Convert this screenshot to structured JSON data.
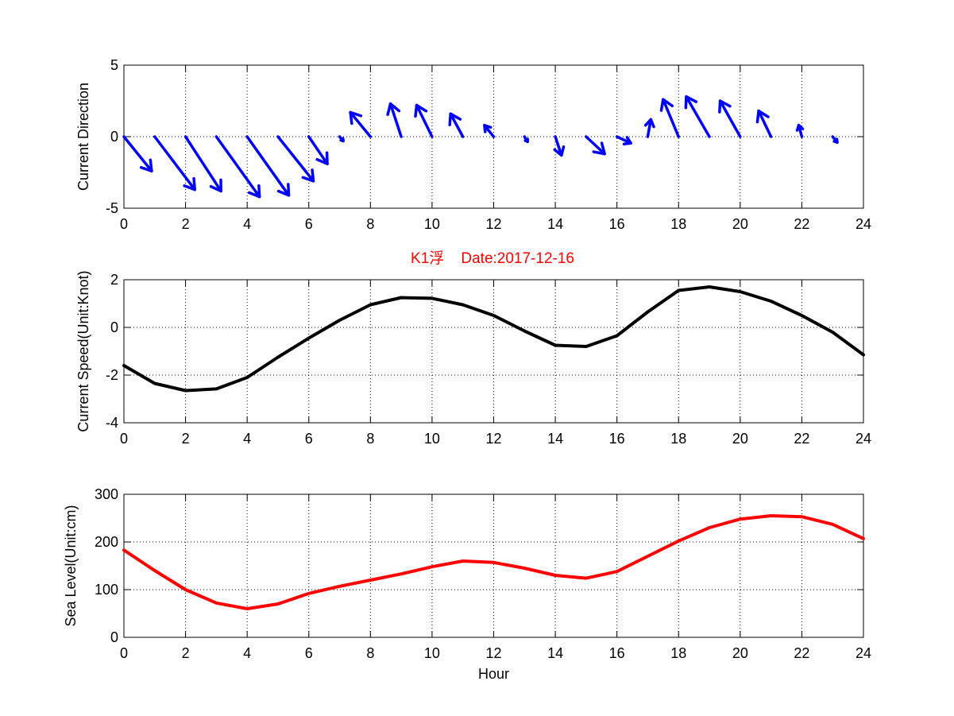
{
  "figure_title": "K1浮    Date:2017-12-16",
  "colors": {
    "title": "#ff0000",
    "arrows": "#0000ff",
    "speed_line": "#000000",
    "sea_line": "#ff0000",
    "axis": "#000000",
    "grid": "#000000"
  },
  "chart_data": [
    {
      "type": "quiver",
      "ylabel": "Current Direction",
      "xlabel": "",
      "xlim": [
        0,
        24
      ],
      "ylim": [
        -5,
        5
      ],
      "xticks": [
        0,
        2,
        4,
        6,
        8,
        10,
        12,
        14,
        16,
        18,
        20,
        22,
        24
      ],
      "yticks": [
        -5,
        0,
        5
      ],
      "grid": true,
      "x": [
        0,
        1,
        2,
        3,
        4,
        5,
        6,
        7,
        8,
        9,
        10,
        11,
        12,
        13,
        14,
        15,
        16,
        17,
        18,
        19,
        20,
        21,
        22,
        23
      ],
      "u": [
        0.9,
        1.3,
        1.15,
        1.4,
        1.35,
        1.15,
        0.6,
        0.12,
        -0.65,
        -0.35,
        -0.5,
        -0.4,
        -0.3,
        0.1,
        0.2,
        0.6,
        0.45,
        0.1,
        -0.5,
        -0.75,
        -0.65,
        -0.4,
        -0.1,
        0.15
      ],
      "v": [
        -2.4,
        -3.7,
        -3.8,
        -4.2,
        -4.1,
        -3.1,
        -1.9,
        -0.3,
        1.7,
        2.3,
        2.2,
        1.6,
        0.8,
        -0.35,
        -1.3,
        -1.2,
        -0.45,
        1.2,
        2.6,
        2.8,
        2.5,
        1.8,
        0.8,
        -0.4
      ]
    },
    {
      "type": "line",
      "ylabel": "Current Speed(Unit:Knot)",
      "xlabel": "",
      "xlim": [
        0,
        24
      ],
      "ylim": [
        -4,
        2
      ],
      "xticks": [
        0,
        2,
        4,
        6,
        8,
        10,
        12,
        14,
        16,
        18,
        20,
        22,
        24
      ],
      "yticks": [
        -4,
        -2,
        0,
        2
      ],
      "grid": true,
      "x": [
        0,
        1,
        2,
        3,
        4,
        5,
        6,
        7,
        8,
        9,
        10,
        11,
        12,
        13,
        14,
        15,
        16,
        17,
        18,
        19,
        20,
        21,
        22,
        23,
        24
      ],
      "values": [
        -1.6,
        -2.35,
        -2.65,
        -2.58,
        -2.1,
        -1.25,
        -0.45,
        0.3,
        0.95,
        1.25,
        1.22,
        0.95,
        0.5,
        -0.15,
        -0.75,
        -0.8,
        -0.35,
        0.65,
        1.55,
        1.7,
        1.5,
        1.1,
        0.5,
        -0.2,
        -1.15
      ]
    },
    {
      "type": "line",
      "ylabel": "Sea Level(Unit:cm)",
      "xlabel": "Hour",
      "xlim": [
        0,
        24
      ],
      "ylim": [
        0,
        300
      ],
      "xticks": [
        0,
        2,
        4,
        6,
        8,
        10,
        12,
        14,
        16,
        18,
        20,
        22,
        24
      ],
      "yticks": [
        0,
        100,
        200,
        300
      ],
      "grid": true,
      "x": [
        0,
        1,
        2,
        3,
        4,
        5,
        6,
        7,
        8,
        9,
        10,
        11,
        12,
        13,
        14,
        15,
        16,
        17,
        18,
        19,
        20,
        21,
        22,
        23,
        24
      ],
      "values": [
        183,
        140,
        100,
        72,
        60,
        70,
        92,
        107,
        120,
        133,
        148,
        160,
        157,
        145,
        130,
        124,
        138,
        170,
        202,
        230,
        248,
        255,
        253,
        237,
        207
      ]
    }
  ]
}
